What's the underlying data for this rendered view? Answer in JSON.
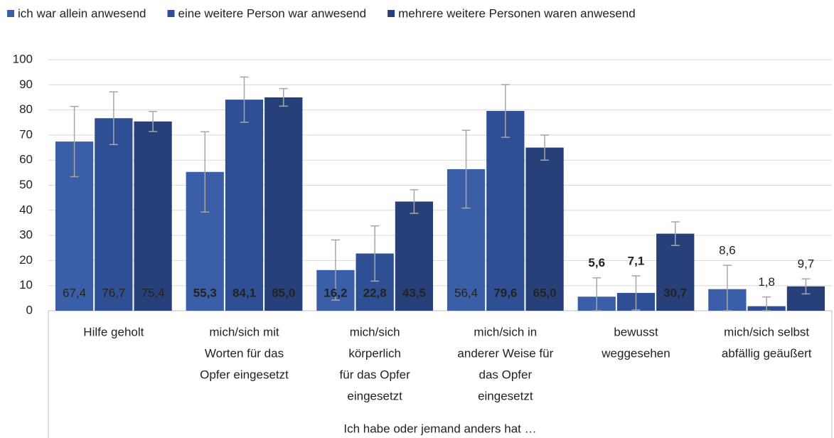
{
  "chart_data": {
    "type": "bar",
    "x_label": "Ich habe oder jemand anders hat …",
    "categories": [
      [
        "Hilfe geholt"
      ],
      [
        "mich/sich mit",
        "Worten für das",
        "Opfer eingesetzt"
      ],
      [
        "mich/sich",
        "körperlich",
        "für das Opfer",
        "eingesetzt"
      ],
      [
        "mich/sich in",
        "anderer Weise für",
        "das Opfer",
        "eingesetzt"
      ],
      [
        "bewusst",
        "weggesehen"
      ],
      [
        "mich/sich selbst",
        "abfällig geäußert"
      ]
    ],
    "series": [
      {
        "name": "ich war allein anwesend",
        "color": "#3b5ea9",
        "values": [
          67.4,
          55.3,
          16.2,
          56.4,
          5.6,
          8.6
        ],
        "value_labels": [
          "67,4",
          "55,3",
          "16,2",
          "56,4",
          "5,6",
          "8,6"
        ],
        "errors": [
          14,
          16,
          12,
          15.5,
          7.5,
          9.5
        ],
        "bold": [
          false,
          true,
          true,
          false,
          true,
          false
        ]
      },
      {
        "name": "eine weitere Person war anwesend",
        "color": "#2f4f95",
        "values": [
          76.7,
          84.1,
          22.8,
          79.6,
          7.1,
          1.8
        ],
        "value_labels": [
          "76,7",
          "84,1",
          "22,8",
          "79,6",
          "7,1",
          "1,8"
        ],
        "errors": [
          10.5,
          9,
          11,
          10.5,
          6.8,
          3.7
        ],
        "bold": [
          false,
          true,
          true,
          true,
          true,
          false
        ]
      },
      {
        "name": "mehrere weitere Personen waren anwesend",
        "color": "#27407a",
        "values": [
          75.4,
          85.0,
          43.5,
          65.0,
          30.7,
          9.7
        ],
        "value_labels": [
          "75,4",
          "85,0",
          "43,5",
          "65,0",
          "30,7",
          "9,7"
        ],
        "errors": [
          4,
          3.5,
          4.7,
          5,
          4.7,
          3
        ],
        "bold": [
          false,
          true,
          true,
          true,
          true,
          false
        ]
      }
    ],
    "ylim": [
      0,
      100
    ],
    "yticks": [
      0,
      10,
      20,
      30,
      40,
      50,
      60,
      70,
      80,
      90,
      100
    ],
    "grid": true,
    "error_color": "#a6a6a6"
  }
}
